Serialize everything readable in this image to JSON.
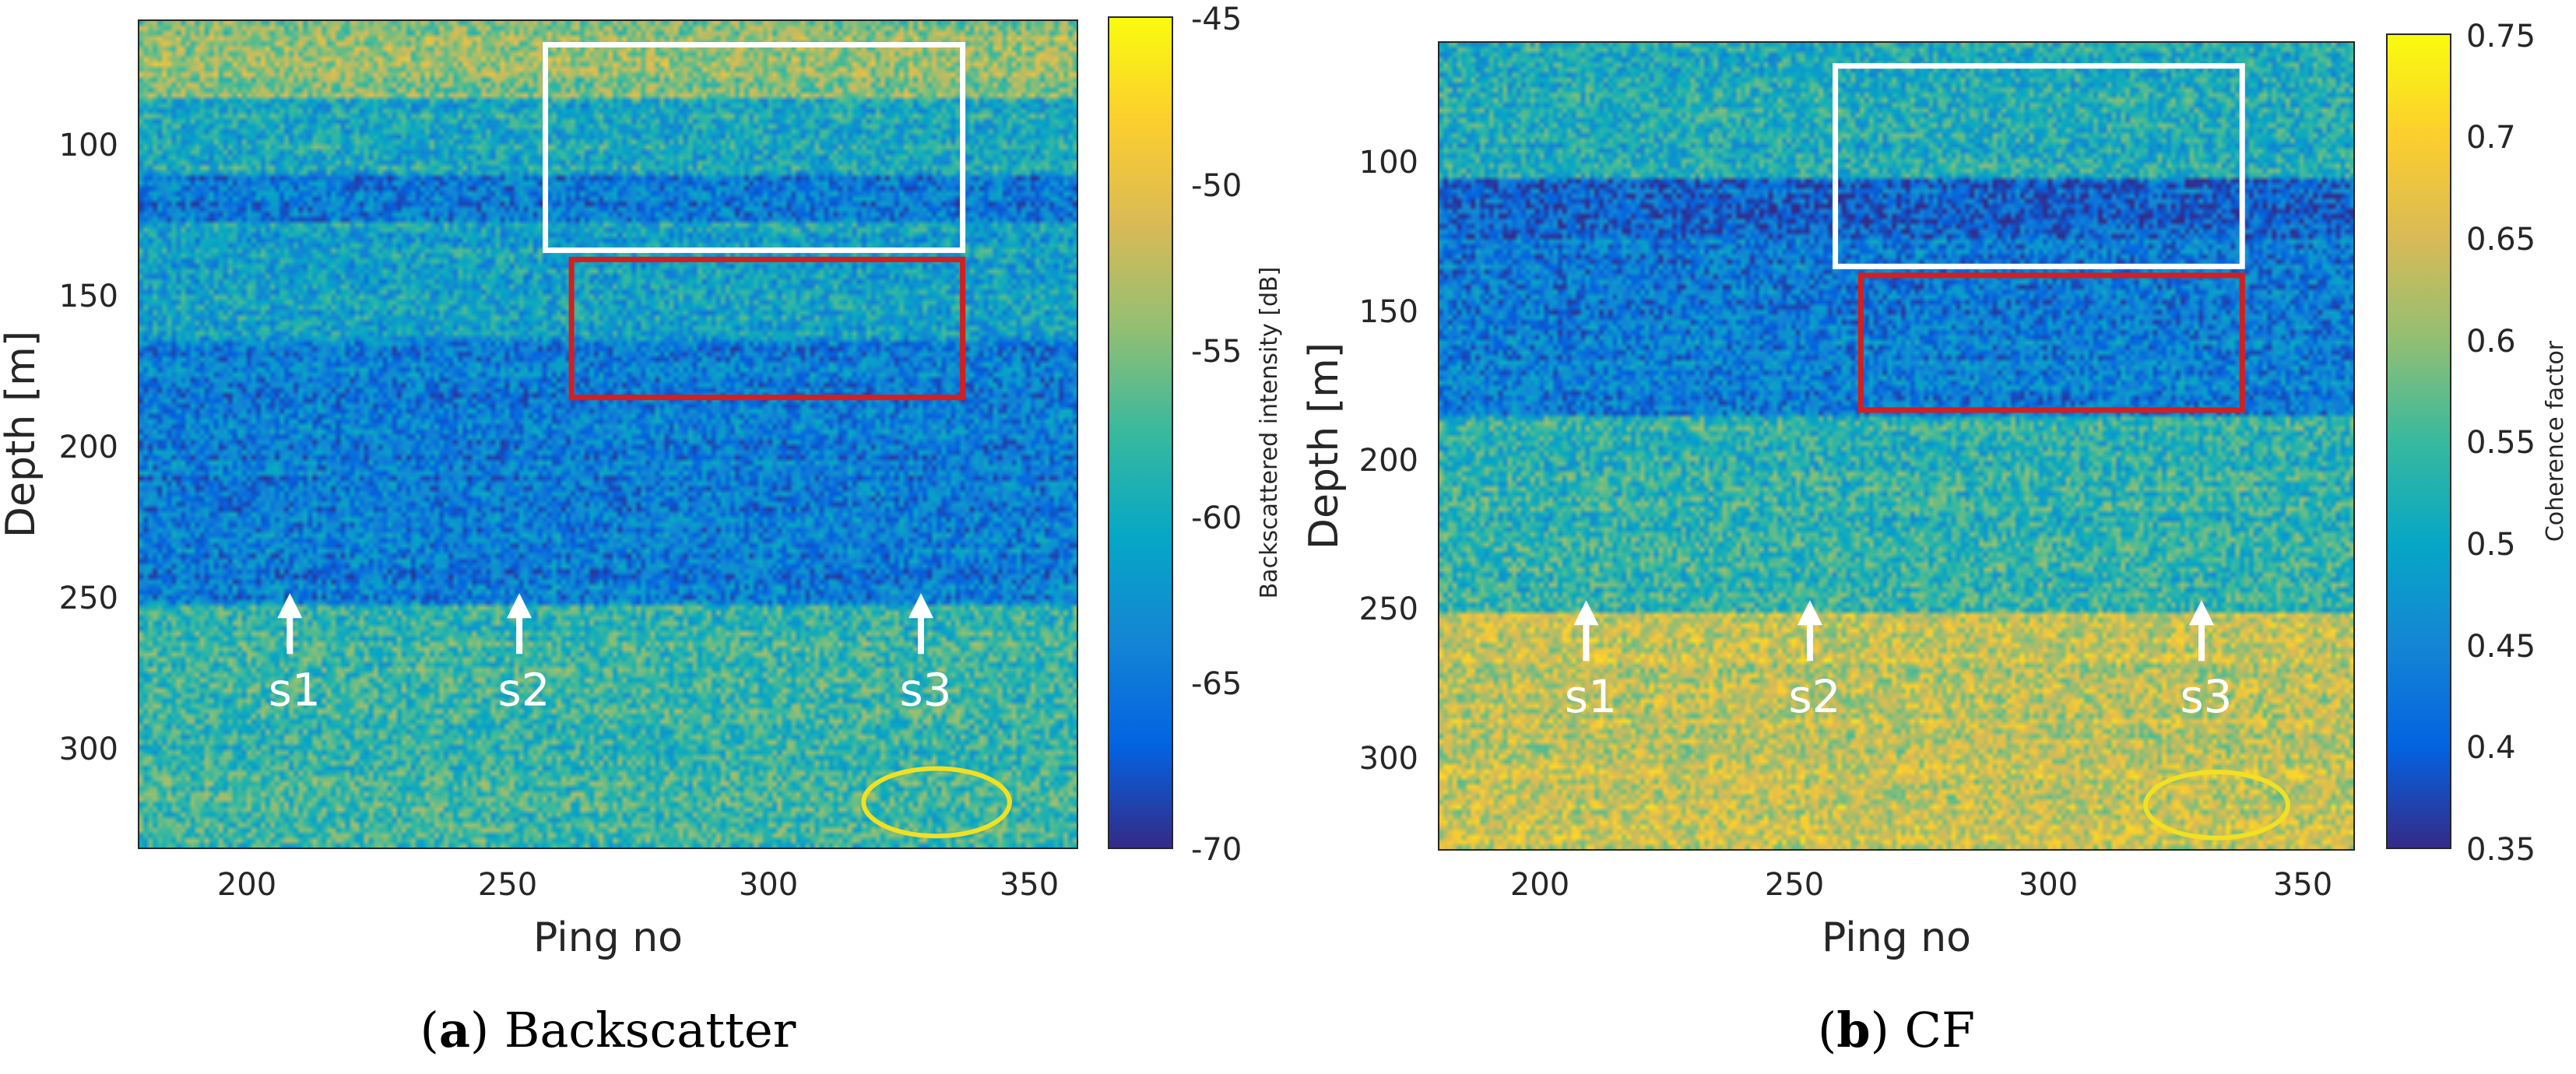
{
  "chart_data": [
    {
      "type": "heatmap",
      "caption_letter": "a",
      "caption_text": "Backscatter",
      "xlabel": "Ping no",
      "ylabel": "Depth [m]",
      "xlim": [
        180,
        360
      ],
      "ylim": [
        330,
        60
      ],
      "xticks": [
        200,
        250,
        300,
        350
      ],
      "yticks": [
        100,
        150,
        200,
        250,
        300
      ],
      "colorbar": {
        "label": "Backscattered intensity [dB]",
        "range": [
          -70,
          -45
        ],
        "ticks": [
          -45,
          -50,
          -55,
          -60,
          -65,
          -70
        ]
      },
      "bands": [
        {
          "from": 60,
          "to": 85,
          "level": 0.62
        },
        {
          "from": 85,
          "to": 110,
          "level": 0.4
        },
        {
          "from": 110,
          "to": 125,
          "level": 0.22
        },
        {
          "from": 125,
          "to": 165,
          "level": 0.36
        },
        {
          "from": 165,
          "to": 250,
          "level": 0.22
        },
        {
          "from": 250,
          "to": 330,
          "level": 0.48
        }
      ],
      "regions": [
        {
          "name": "white",
          "color": "#ffffff",
          "x": [
            258,
            338
          ],
          "y": [
            68,
            135
          ]
        },
        {
          "name": "red",
          "color": "#d21f1f",
          "x": [
            263,
            338
          ],
          "y": [
            138,
            183
          ]
        }
      ],
      "markers": [
        {
          "label": "s1",
          "ping": 209,
          "depth": 258
        },
        {
          "label": "s2",
          "ping": 253,
          "depth": 258
        },
        {
          "label": "s3",
          "ping": 330,
          "depth": 258
        }
      ],
      "ellipse": {
        "color": "#f2e022",
        "ping": 333,
        "depth": 315,
        "rx": 14,
        "ry": 11
      }
    },
    {
      "type": "heatmap",
      "caption_letter": "b",
      "caption_text": "CF",
      "xlabel": "Ping no",
      "ylabel": "Depth [m]",
      "xlim": [
        180,
        360
      ],
      "ylim": [
        330,
        60
      ],
      "xticks": [
        200,
        250,
        300,
        350
      ],
      "yticks": [
        100,
        150,
        200,
        250,
        300
      ],
      "colorbar": {
        "label": "Coherence factor",
        "range": [
          0.35,
          0.75
        ],
        "ticks": [
          0.75,
          0.7,
          0.65,
          0.6,
          0.55,
          0.5,
          0.45,
          0.4,
          0.35
        ]
      },
      "bands": [
        {
          "from": 60,
          "to": 105,
          "level": 0.42
        },
        {
          "from": 105,
          "to": 125,
          "level": 0.14
        },
        {
          "from": 125,
          "to": 185,
          "level": 0.22
        },
        {
          "from": 185,
          "to": 250,
          "level": 0.46
        },
        {
          "from": 250,
          "to": 330,
          "level": 0.72
        }
      ],
      "regions": [
        {
          "name": "white",
          "color": "#ffffff",
          "x": [
            258,
            338
          ],
          "y": [
            68,
            135
          ]
        },
        {
          "name": "red",
          "color": "#d21f1f",
          "x": [
            263,
            338
          ],
          "y": [
            138,
            183
          ]
        }
      ],
      "markers": [
        {
          "label": "s1",
          "ping": 209,
          "depth": 258
        },
        {
          "label": "s2",
          "ping": 253,
          "depth": 258
        },
        {
          "label": "s3",
          "ping": 330,
          "depth": 258
        }
      ],
      "ellipse": {
        "color": "#f2e022",
        "ping": 333,
        "depth": 315,
        "rx": 14,
        "ry": 11
      }
    }
  ]
}
